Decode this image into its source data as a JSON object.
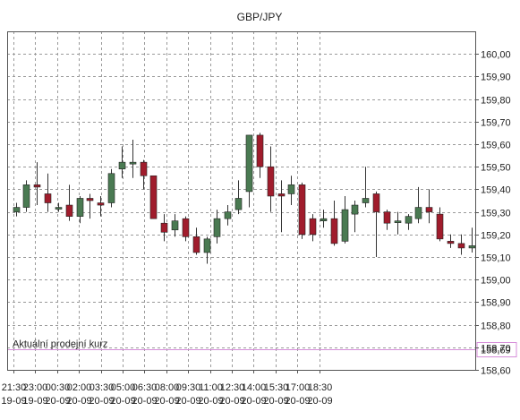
{
  "colors": {
    "background": "#ffffff",
    "grid": "#9a9a9a",
    "frame": "#555555",
    "up_fill": "#4a7a52",
    "down_fill": "#a01c2c",
    "wick": "#333333",
    "line": "#d58cd8"
  },
  "chart_data": {
    "type": "candlestick",
    "title": "GBP/JPY",
    "grid": true,
    "y_axis_side": "right",
    "ylim": [
      158.6,
      160.1
    ],
    "y_ticks": [
      "160,00",
      "159,90",
      "159,80",
      "159,70",
      "159,60",
      "159,50",
      "159,40",
      "159,30",
      "159,20",
      "159,10",
      "159,00",
      "158,90",
      "158,80",
      "158,70",
      "158,60"
    ],
    "x_ticks": [
      {
        "time": "21:30",
        "date": "19-09"
      },
      {
        "time": "23:00",
        "date": "19-09"
      },
      {
        "time": "00:30",
        "date": "20-09"
      },
      {
        "time": "02:00",
        "date": "20-09"
      },
      {
        "time": "03:30",
        "date": "20-09"
      },
      {
        "time": "05:00",
        "date": "20-09"
      },
      {
        "time": "06:30",
        "date": "20-09"
      },
      {
        "time": "08:00",
        "date": "20-09"
      },
      {
        "time": "09:30",
        "date": "20-09"
      },
      {
        "time": "11:00",
        "date": "20-09"
      },
      {
        "time": "12:30",
        "date": "20-09"
      },
      {
        "time": "14:00",
        "date": "20-09"
      },
      {
        "time": "15:30",
        "date": "20-09"
      },
      {
        "time": "17:00",
        "date": "20-09"
      },
      {
        "time": "18:30",
        "date": "20-09"
      }
    ],
    "candles": [
      {
        "o": 159.3,
        "h": 159.34,
        "l": 159.28,
        "c": 159.32
      },
      {
        "o": 159.32,
        "h": 159.44,
        "l": 159.3,
        "c": 159.42
      },
      {
        "o": 159.42,
        "h": 159.52,
        "l": 159.33,
        "c": 159.41
      },
      {
        "o": 159.38,
        "h": 159.47,
        "l": 159.3,
        "c": 159.34
      },
      {
        "o": 159.32,
        "h": 159.34,
        "l": 159.3,
        "c": 159.32
      },
      {
        "o": 159.33,
        "h": 159.42,
        "l": 159.26,
        "c": 159.28
      },
      {
        "o": 159.28,
        "h": 159.37,
        "l": 159.25,
        "c": 159.36
      },
      {
        "o": 159.36,
        "h": 159.38,
        "l": 159.27,
        "c": 159.35
      },
      {
        "o": 159.34,
        "h": 159.37,
        "l": 159.28,
        "c": 159.33
      },
      {
        "o": 159.34,
        "h": 159.49,
        "l": 159.32,
        "c": 159.47
      },
      {
        "o": 159.49,
        "h": 159.59,
        "l": 159.45,
        "c": 159.52
      },
      {
        "o": 159.52,
        "h": 159.62,
        "l": 159.45,
        "c": 159.52
      },
      {
        "o": 159.52,
        "h": 159.53,
        "l": 159.4,
        "c": 159.46
      },
      {
        "o": 159.46,
        "h": 159.46,
        "l": 159.27,
        "c": 159.27
      },
      {
        "o": 159.25,
        "h": 159.29,
        "l": 159.17,
        "c": 159.21
      },
      {
        "o": 159.22,
        "h": 159.29,
        "l": 159.19,
        "c": 159.26
      },
      {
        "o": 159.27,
        "h": 159.28,
        "l": 159.17,
        "c": 159.19
      },
      {
        "o": 159.19,
        "h": 159.23,
        "l": 159.11,
        "c": 159.12
      },
      {
        "o": 159.12,
        "h": 159.19,
        "l": 159.07,
        "c": 159.18
      },
      {
        "o": 159.19,
        "h": 159.31,
        "l": 159.16,
        "c": 159.27
      },
      {
        "o": 159.27,
        "h": 159.33,
        "l": 159.24,
        "c": 159.3
      },
      {
        "o": 159.31,
        "h": 159.44,
        "l": 159.29,
        "c": 159.36
      },
      {
        "o": 159.39,
        "h": 159.64,
        "l": 159.32,
        "c": 159.64
      },
      {
        "o": 159.64,
        "h": 159.65,
        "l": 159.45,
        "c": 159.5
      },
      {
        "o": 159.5,
        "h": 159.59,
        "l": 159.3,
        "c": 159.37
      },
      {
        "o": 159.38,
        "h": 159.44,
        "l": 159.21,
        "c": 159.37
      },
      {
        "o": 159.38,
        "h": 159.46,
        "l": 159.33,
        "c": 159.42
      },
      {
        "o": 159.42,
        "h": 159.43,
        "l": 159.18,
        "c": 159.2
      },
      {
        "o": 159.27,
        "h": 159.29,
        "l": 159.17,
        "c": 159.2
      },
      {
        "o": 159.26,
        "h": 159.31,
        "l": 159.23,
        "c": 159.27
      },
      {
        "o": 159.27,
        "h": 159.35,
        "l": 159.15,
        "c": 159.16
      },
      {
        "o": 159.17,
        "h": 159.37,
        "l": 159.16,
        "c": 159.31
      },
      {
        "o": 159.29,
        "h": 159.35,
        "l": 159.21,
        "c": 159.33
      },
      {
        "o": 159.34,
        "h": 159.5,
        "l": 159.32,
        "c": 159.36
      },
      {
        "o": 159.38,
        "h": 159.39,
        "l": 159.1,
        "c": 159.3
      },
      {
        "o": 159.3,
        "h": 159.31,
        "l": 159.22,
        "c": 159.25
      },
      {
        "o": 159.26,
        "h": 159.3,
        "l": 159.2,
        "c": 159.26
      },
      {
        "o": 159.25,
        "h": 159.29,
        "l": 159.22,
        "c": 159.28
      },
      {
        "o": 159.27,
        "h": 159.41,
        "l": 159.25,
        "c": 159.32
      },
      {
        "o": 159.32,
        "h": 159.4,
        "l": 159.25,
        "c": 159.3
      },
      {
        "o": 159.29,
        "h": 159.32,
        "l": 159.17,
        "c": 159.18
      },
      {
        "o": 159.17,
        "h": 159.2,
        "l": 159.14,
        "c": 159.16
      },
      {
        "o": 159.16,
        "h": 159.2,
        "l": 159.11,
        "c": 159.14
      },
      {
        "o": 159.14,
        "h": 159.23,
        "l": 159.12,
        "c": 159.15
      }
    ],
    "reference_line": {
      "label": "Aktuální prodejní kurz",
      "value_label": "158,69",
      "value": 158.69
    }
  }
}
